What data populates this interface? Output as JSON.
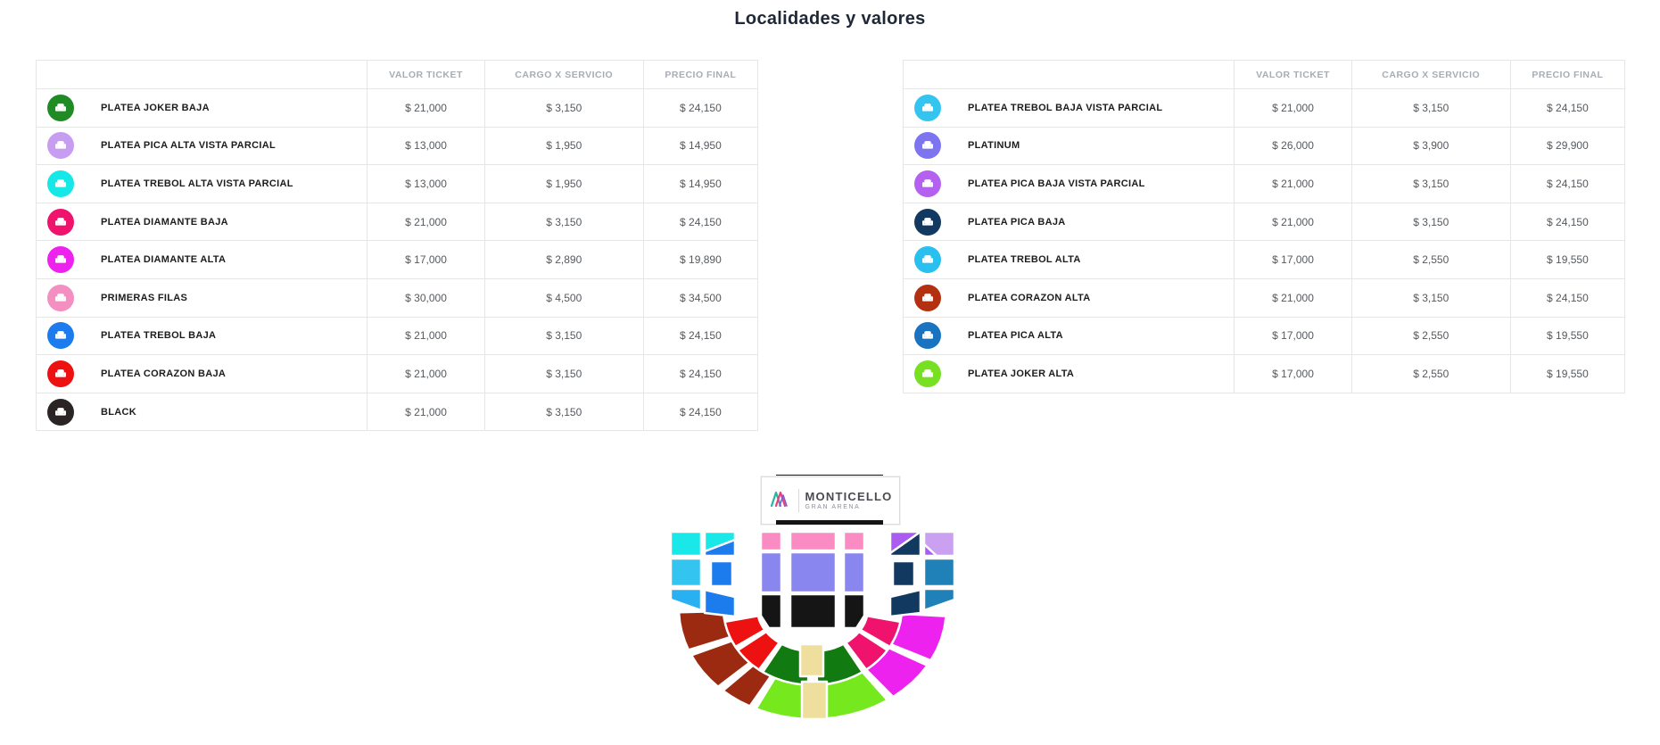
{
  "page": {
    "title": "Localidades y valores"
  },
  "table_columns": {
    "valor": "VALOR TICKET",
    "cargo": "CARGO X SERVICIO",
    "precio": "PRECIO FINAL"
  },
  "row_icon": "seat-icon",
  "left_table": {
    "rows": [
      {
        "label": "PLATEA JOKER BAJA",
        "color": "#1f8b24",
        "valor": "$ 21,000",
        "cargo": "$ 3,150",
        "precio": "$ 24,150"
      },
      {
        "label": "PLATEA PICA ALTA VISTA PARCIAL",
        "color": "#c79df2",
        "valor": "$ 13,000",
        "cargo": "$ 1,950",
        "precio": "$ 14,950"
      },
      {
        "label": "PLATEA TREBOL ALTA VISTA PARCIAL",
        "color": "#16e8e8",
        "valor": "$ 13,000",
        "cargo": "$ 1,950",
        "precio": "$ 14,950"
      },
      {
        "label": "PLATEA DIAMANTE BAJA",
        "color": "#f0136e",
        "valor": "$ 21,000",
        "cargo": "$ 3,150",
        "precio": "$ 24,150"
      },
      {
        "label": "PLATEA DIAMANTE ALTA",
        "color": "#ee22ee",
        "valor": "$ 17,000",
        "cargo": "$ 2,890",
        "precio": "$ 19,890"
      },
      {
        "label": "PRIMERAS FILAS",
        "color": "#f48fc1",
        "valor": "$ 30,000",
        "cargo": "$ 4,500",
        "precio": "$ 34,500"
      },
      {
        "label": "PLATEA TREBOL BAJA",
        "color": "#1c7bed",
        "valor": "$ 21,000",
        "cargo": "$ 3,150",
        "precio": "$ 24,150"
      },
      {
        "label": "PLATEA CORAZON BAJA",
        "color": "#ee1111",
        "valor": "$ 21,000",
        "cargo": "$ 3,150",
        "precio": "$ 24,150"
      },
      {
        "label": "BLACK",
        "color": "#2a2424",
        "valor": "$ 21,000",
        "cargo": "$ 3,150",
        "precio": "$ 24,150"
      }
    ]
  },
  "right_table": {
    "rows": [
      {
        "label": "PLATEA TREBOL BAJA VISTA PARCIAL",
        "color": "#33c5f0",
        "valor": "$ 21,000",
        "cargo": "$ 3,150",
        "precio": "$ 24,150"
      },
      {
        "label": "PLATINUM",
        "color": "#7d75f0",
        "valor": "$ 26,000",
        "cargo": "$ 3,900",
        "precio": "$ 29,900"
      },
      {
        "label": "PLATEA PICA BAJA VISTA PARCIAL",
        "color": "#b461f0",
        "valor": "$ 21,000",
        "cargo": "$ 3,150",
        "precio": "$ 24,150"
      },
      {
        "label": "PLATEA PICA BAJA",
        "color": "#12395f",
        "valor": "$ 21,000",
        "cargo": "$ 3,150",
        "precio": "$ 24,150"
      },
      {
        "label": "PLATEA TREBOL ALTA",
        "color": "#29c0f0",
        "valor": "$ 17,000",
        "cargo": "$ 2,550",
        "precio": "$ 19,550"
      },
      {
        "label": "PLATEA CORAZON ALTA",
        "color": "#b33110",
        "valor": "$ 21,000",
        "cargo": "$ 3,150",
        "precio": "$ 24,150"
      },
      {
        "label": "PLATEA PICA ALTA",
        "color": "#1a73c0",
        "valor": "$ 17,000",
        "cargo": "$ 2,550",
        "precio": "$ 19,550"
      },
      {
        "label": "PLATEA JOKER ALTA",
        "color": "#77e022",
        "valor": "$ 17,000",
        "cargo": "$ 2,550",
        "precio": "$ 19,550"
      }
    ]
  },
  "venue": {
    "logo_title": "MONTICELLO",
    "logo_subtitle": "GRAN ARENA",
    "logo_icon": "monticello-m-icon"
  },
  "map_palette": {
    "trebol_alta_vp": "#1ae8e8",
    "trebol_baja_vp": "#33c5f0",
    "trebol_alta": "#29b0f0",
    "trebol_baja": "#1c7bed",
    "corazon_baja": "#ee1111",
    "corazon_alta": "#9c2a10",
    "joker_baja": "#117a11",
    "joker_alta": "#76e81e",
    "diamante_baja": "#f0136e",
    "diamante_alta": "#ee22ee",
    "primeras_filas": "#fb8cc3",
    "platinum": "#8a86f0",
    "black": "#151515",
    "pica_alta_vp": "#c9a1f0",
    "pica_baja_vp": "#ab5cf0",
    "pica_baja": "#12395f",
    "pica_alta": "#2080b8",
    "aisle": "#eedf9f"
  }
}
